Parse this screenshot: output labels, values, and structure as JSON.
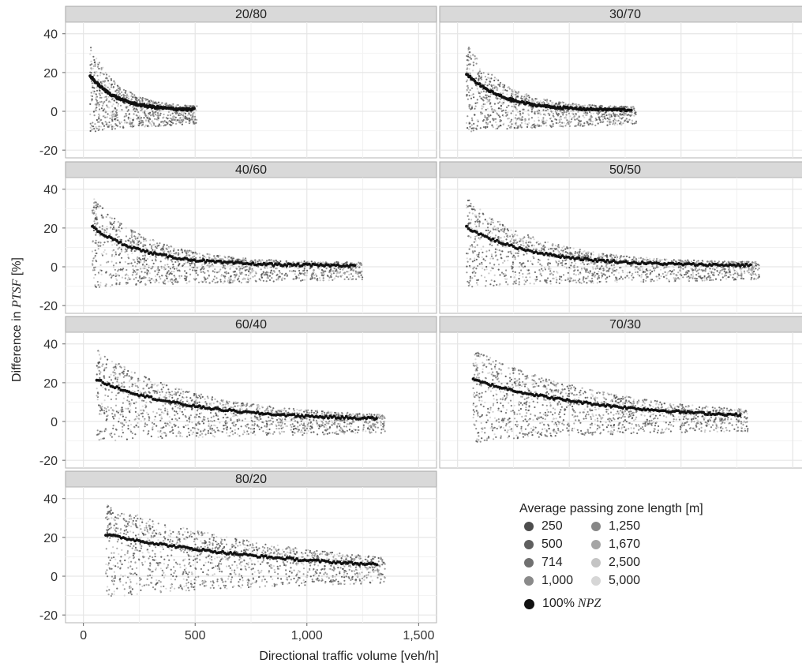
{
  "chart_data": {
    "type": "scatter",
    "xlabel": "Directional traffic volume [veh/h]",
    "ylabel_prefix": "Difference in ",
    "ylabel_italic": "PTSF",
    "ylabel_suffix": " [%]",
    "xlim": [
      -80,
      1580
    ],
    "ylim": [
      -24,
      46
    ],
    "x_ticks": [
      0,
      500,
      1000,
      1500
    ],
    "x_tick_labels": [
      "0",
      "500",
      "1,000",
      "1,500"
    ],
    "y_ticks": [
      -20,
      0,
      20,
      40
    ],
    "y_tick_labels": [
      "-20",
      "0",
      "20",
      "40"
    ],
    "grid": true,
    "panels": [
      {
        "label": "20/80",
        "x_min": 30,
        "x_max": 510,
        "npz_start": 18,
        "npz_decay": 120
      },
      {
        "label": "30/70",
        "x_min": 40,
        "x_max": 800,
        "npz_start": 19,
        "npz_decay": 160
      },
      {
        "label": "40/60",
        "x_min": 40,
        "x_max": 1250,
        "npz_start": 20,
        "npz_decay": 240
      },
      {
        "label": "50/50",
        "x_min": 40,
        "x_max": 1350,
        "npz_start": 20,
        "npz_decay": 300
      },
      {
        "label": "60/40",
        "x_min": 60,
        "x_max": 1350,
        "npz_start": 21,
        "npz_decay": 420
      },
      {
        "label": "70/30",
        "x_min": 70,
        "x_max": 1300,
        "npz_start": 21,
        "npz_decay": 600
      },
      {
        "label": "80/20",
        "x_min": 100,
        "x_max": 1350,
        "npz_start": 21,
        "npz_decay": 900
      }
    ],
    "legend": {
      "title": "Average passing zone length [m]",
      "items": [
        {
          "label": "250",
          "color": "#4d4d4d"
        },
        {
          "label": "500",
          "color": "#5f5f5f"
        },
        {
          "label": "714",
          "color": "#707070"
        },
        {
          "label": "1,000",
          "color": "#8a8a8a"
        },
        {
          "label": "1,250",
          "color": "#878787"
        },
        {
          "label": "1,670",
          "color": "#a5a5a5"
        },
        {
          "label": "2,500",
          "color": "#c4c4c4"
        },
        {
          "label": "5,000",
          "color": "#d6d6d6"
        }
      ],
      "npz_prefix": "100% ",
      "npz_italic": "NPZ",
      "npz_color": "#111111"
    },
    "colors": {
      "strip": "#d9d9d9",
      "strip_border": "#a8a8a8",
      "grid_major": "#e6e6e6",
      "grid_minor": "#f2f2f2",
      "panel_border": "#b3b3b3"
    }
  }
}
